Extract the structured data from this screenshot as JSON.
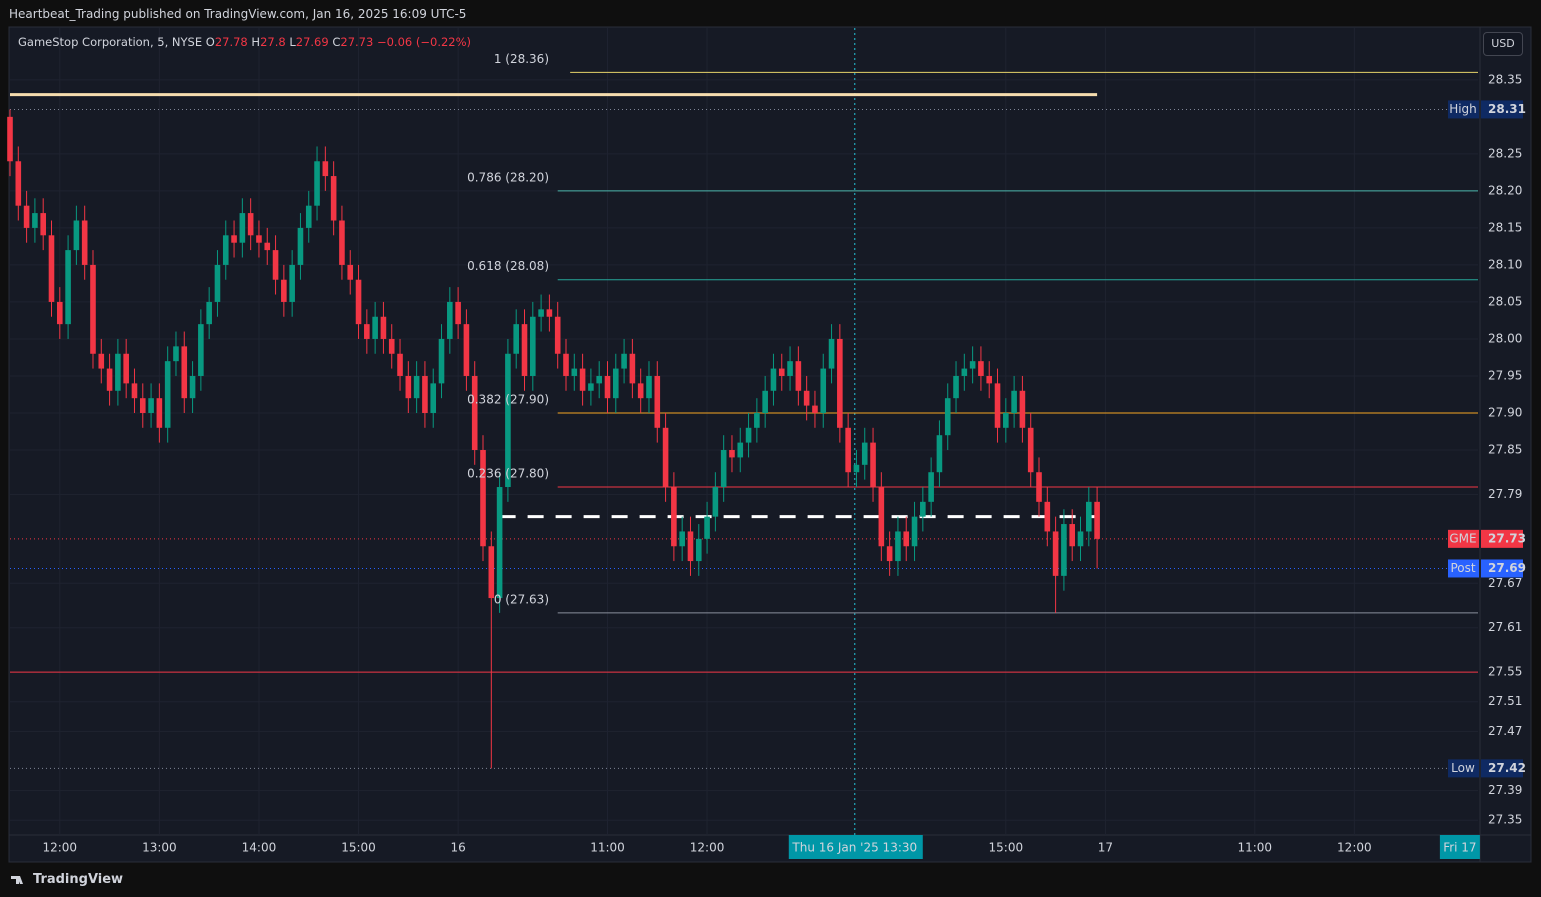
{
  "header": {
    "publisher": "Heartbeat_Trading published on TradingView.com, Jan 16, 2025 16:09 UTC-5",
    "brand": "TradingView",
    "currency_button": "USD"
  },
  "chart_data": {
    "type": "candlestick",
    "title": "GameStop Corporation, 5, NYSE",
    "ohlc_labels": [
      "O",
      "H",
      "L",
      "C"
    ],
    "change": "−0.06 (−0.22%)",
    "up_color": "#089981",
    "down_color": "#f23645",
    "xlim": [
      0,
      176.9
    ],
    "ylim": [
      27.33,
      28.42
    ],
    "xticks": [
      {
        "value": 6,
        "label": "12:00"
      },
      {
        "value": 18,
        "label": "13:00"
      },
      {
        "value": 30,
        "label": "14:00"
      },
      {
        "value": 42,
        "label": "15:00"
      },
      {
        "value": 54,
        "label": "16"
      },
      {
        "value": 72,
        "label": "11:00"
      },
      {
        "value": 84,
        "label": "12:00"
      },
      {
        "value": 120,
        "label": "15:00"
      },
      {
        "value": 132,
        "label": "17"
      },
      {
        "value": 150,
        "label": "11:00"
      },
      {
        "value": 162,
        "label": "12:00"
      }
    ],
    "x_end_label": {
      "value": 175.2,
      "label": "Fri 17"
    },
    "crosshair": {
      "value": 101.8,
      "label": "Thu 16 Jan '25   13:30"
    },
    "yticks": [
      28.35,
      28.25,
      {
        "value": 28.2,
        "label": "28.20"
      },
      28.15,
      {
        "value": 28.1,
        "label": "28.10"
      },
      28.05,
      {
        "value": 28.0,
        "label": "28.00"
      },
      27.95,
      {
        "value": 27.9,
        "label": "27.90"
      },
      27.85,
      27.79,
      27.67,
      27.61,
      27.55,
      27.51,
      27.47,
      27.39,
      27.35
    ],
    "grid": true,
    "open": [
      28.3,
      28.24,
      28.18,
      28.15,
      28.17,
      28.14,
      28.05,
      28.02,
      28.12,
      28.16,
      28.1,
      27.98,
      27.96,
      27.93,
      27.98,
      27.94,
      27.92,
      27.9,
      27.92,
      27.88,
      27.97,
      27.99,
      27.92,
      27.95,
      28.02,
      28.05,
      28.1,
      28.14,
      28.13,
      28.17,
      28.14,
      28.13,
      28.12,
      28.08,
      28.05,
      28.1,
      28.15,
      28.18,
      28.24,
      28.22,
      28.16,
      28.1,
      28.08,
      28.02,
      28.0,
      28.03,
      28.0,
      27.98,
      27.95,
      27.92,
      27.95,
      27.9,
      27.94,
      28.0,
      28.05,
      28.02,
      27.95,
      27.85,
      27.72,
      27.65,
      27.8,
      27.98,
      28.02,
      27.95,
      28.03,
      28.04,
      28.03,
      27.98,
      27.95,
      27.96,
      27.93,
      27.94,
      27.95,
      27.92,
      27.96,
      27.98,
      27.94,
      27.92,
      27.95,
      27.88,
      27.8,
      27.72,
      27.74,
      27.7,
      27.73,
      27.76,
      27.8,
      27.85,
      27.84,
      27.86,
      27.88,
      27.9,
      27.93,
      27.96,
      27.95,
      27.97,
      27.93,
      27.91,
      27.9,
      27.96,
      28.0,
      27.88,
      27.82,
      27.83,
      27.86,
      27.8,
      27.72,
      27.7,
      27.74,
      27.72,
      27.76,
      27.78,
      27.82,
      27.87,
      27.92,
      27.95,
      27.96,
      27.97,
      27.95,
      27.94,
      27.88,
      27.9,
      27.93,
      27.88,
      27.82,
      27.78,
      27.74,
      27.68,
      27.75,
      27.72,
      27.74,
      27.78
    ],
    "high": [
      28.31,
      28.26,
      28.2,
      28.19,
      28.19,
      28.16,
      28.07,
      28.14,
      28.18,
      28.18,
      28.12,
      28.0,
      27.98,
      28.0,
      28.0,
      27.96,
      27.94,
      27.94,
      27.94,
      27.99,
      28.01,
      28.01,
      27.97,
      28.04,
      28.07,
      28.12,
      28.16,
      28.16,
      28.19,
      28.19,
      28.16,
      28.15,
      28.14,
      28.1,
      28.12,
      28.17,
      28.2,
      28.26,
      28.26,
      28.24,
      28.18,
      28.12,
      28.1,
      28.04,
      28.05,
      28.05,
      28.02,
      28.0,
      27.97,
      27.97,
      27.97,
      27.96,
      28.02,
      28.07,
      28.07,
      28.04,
      27.97,
      27.87,
      27.74,
      27.82,
      28.0,
      28.04,
      28.04,
      28.05,
      28.06,
      28.06,
      28.05,
      28.0,
      27.98,
      27.98,
      27.96,
      27.97,
      27.97,
      27.98,
      28.0,
      28.0,
      27.96,
      27.97,
      27.97,
      27.9,
      27.82,
      27.76,
      27.76,
      27.75,
      27.78,
      27.82,
      27.87,
      27.87,
      27.88,
      27.9,
      27.92,
      27.95,
      27.98,
      27.98,
      27.99,
      27.99,
      27.95,
      27.93,
      27.98,
      28.02,
      28.02,
      27.9,
      27.85,
      27.88,
      27.88,
      27.82,
      27.74,
      27.76,
      27.76,
      27.78,
      27.8,
      27.84,
      27.89,
      27.94,
      27.97,
      27.98,
      27.99,
      27.99,
      27.97,
      27.96,
      27.92,
      27.95,
      27.95,
      27.9,
      27.84,
      27.8,
      27.76,
      27.77,
      27.77,
      27.76,
      27.8,
      27.8
    ],
    "low": [
      28.22,
      28.16,
      28.13,
      28.13,
      28.12,
      28.03,
      28.0,
      28.0,
      28.1,
      28.08,
      27.96,
      27.94,
      27.91,
      27.91,
      27.92,
      27.9,
      27.88,
      27.88,
      27.86,
      27.86,
      27.95,
      27.9,
      27.9,
      27.93,
      28.0,
      28.03,
      28.08,
      28.11,
      28.11,
      28.12,
      28.11,
      28.1,
      28.06,
      28.03,
      28.03,
      28.08,
      28.13,
      28.16,
      28.2,
      28.14,
      28.08,
      28.06,
      28.0,
      27.98,
      27.98,
      27.98,
      27.96,
      27.93,
      27.9,
      27.9,
      27.88,
      27.88,
      27.92,
      27.98,
      28.0,
      27.93,
      27.83,
      27.7,
      27.42,
      27.63,
      27.78,
      27.96,
      27.93,
      27.93,
      28.01,
      28.01,
      27.96,
      27.93,
      27.93,
      27.91,
      27.91,
      27.92,
      27.9,
      27.9,
      27.94,
      27.92,
      27.9,
      27.9,
      27.86,
      27.78,
      27.7,
      27.7,
      27.68,
      27.68,
      27.71,
      27.74,
      27.78,
      27.82,
      27.82,
      27.84,
      27.86,
      27.88,
      27.91,
      27.93,
      27.93,
      27.91,
      27.89,
      27.88,
      27.88,
      27.94,
      27.86,
      27.8,
      27.8,
      27.81,
      27.78,
      27.7,
      27.68,
      27.68,
      27.7,
      27.7,
      27.74,
      27.76,
      27.8,
      27.85,
      27.9,
      27.93,
      27.94,
      27.93,
      27.92,
      27.86,
      27.86,
      27.88,
      27.86,
      27.8,
      27.76,
      27.72,
      27.63,
      27.66,
      27.7,
      27.7,
      27.72,
      27.69
    ],
    "close": [
      28.24,
      28.18,
      28.15,
      28.17,
      28.14,
      28.05,
      28.02,
      28.12,
      28.16,
      28.1,
      27.98,
      27.96,
      27.93,
      27.98,
      27.94,
      27.92,
      27.9,
      27.92,
      27.88,
      27.97,
      27.99,
      27.92,
      27.95,
      28.02,
      28.05,
      28.1,
      28.14,
      28.13,
      28.17,
      28.14,
      28.13,
      28.12,
      28.08,
      28.05,
      28.1,
      28.15,
      28.18,
      28.24,
      28.22,
      28.16,
      28.1,
      28.08,
      28.02,
      28.0,
      28.03,
      28.0,
      27.98,
      27.95,
      27.92,
      27.95,
      27.9,
      27.94,
      28.0,
      28.05,
      28.02,
      27.95,
      27.85,
      27.72,
      27.65,
      27.8,
      27.98,
      28.02,
      27.95,
      28.03,
      28.04,
      28.03,
      27.98,
      27.95,
      27.96,
      27.93,
      27.94,
      27.95,
      27.92,
      27.96,
      27.98,
      27.94,
      27.92,
      27.95,
      27.88,
      27.8,
      27.72,
      27.74,
      27.7,
      27.73,
      27.76,
      27.8,
      27.85,
      27.84,
      27.86,
      27.88,
      27.9,
      27.93,
      27.96,
      27.95,
      27.97,
      27.93,
      27.91,
      27.9,
      27.96,
      28.0,
      27.88,
      27.82,
      27.83,
      27.86,
      27.8,
      27.72,
      27.7,
      27.74,
      27.72,
      27.76,
      27.78,
      27.82,
      27.87,
      27.92,
      27.95,
      27.96,
      27.97,
      27.95,
      27.94,
      27.88,
      27.9,
      27.93,
      27.88,
      27.82,
      27.78,
      27.74,
      27.68,
      27.75,
      27.72,
      27.74,
      27.78,
      27.73
    ],
    "fib_levels": [
      {
        "label": "1 (28.36)",
        "value": 28.36,
        "color": "#e6d36a",
        "from": 67.5
      },
      {
        "label": "0.786 (28.20)",
        "value": 28.2,
        "color": "#4db6ac",
        "from": 66
      },
      {
        "label": "0.618 (28.08)",
        "value": 28.08,
        "color": "#26a69a",
        "from": 66
      },
      {
        "label": "0.382 (27.90)",
        "value": 27.9,
        "color": "#f5a623",
        "from": 66
      },
      {
        "label": "0.236 (27.80)",
        "value": 27.8,
        "color": "#f23645",
        "from": 66
      },
      {
        "label": "0 (27.63)",
        "value": 27.63,
        "color": "#8a8f9c",
        "from": 66
      }
    ],
    "levels": [
      {
        "value": 28.33,
        "color": "#f5dcae",
        "from": 0,
        "to": 131,
        "style": "solid"
      },
      {
        "value": 27.55,
        "color": "#f23645",
        "from": 0,
        "to": 176.9,
        "style": "thin"
      },
      {
        "value": 27.76,
        "color": "#ffffff",
        "from": 59,
        "to": 131,
        "style": "dashed"
      }
    ],
    "price_markers": [
      {
        "label": "High",
        "value": 28.31,
        "color": "#7f8596",
        "badge": "#0f2a63"
      },
      {
        "label": "GME",
        "value": 27.73,
        "color": "#f23645",
        "badge": "#f23645"
      },
      {
        "label": "Post",
        "value": 27.69,
        "color": "#2962ff",
        "badge": "#2962ff"
      },
      {
        "label": "Low",
        "value": 27.42,
        "color": "#7f8596",
        "badge": "#0f2a63"
      }
    ]
  }
}
